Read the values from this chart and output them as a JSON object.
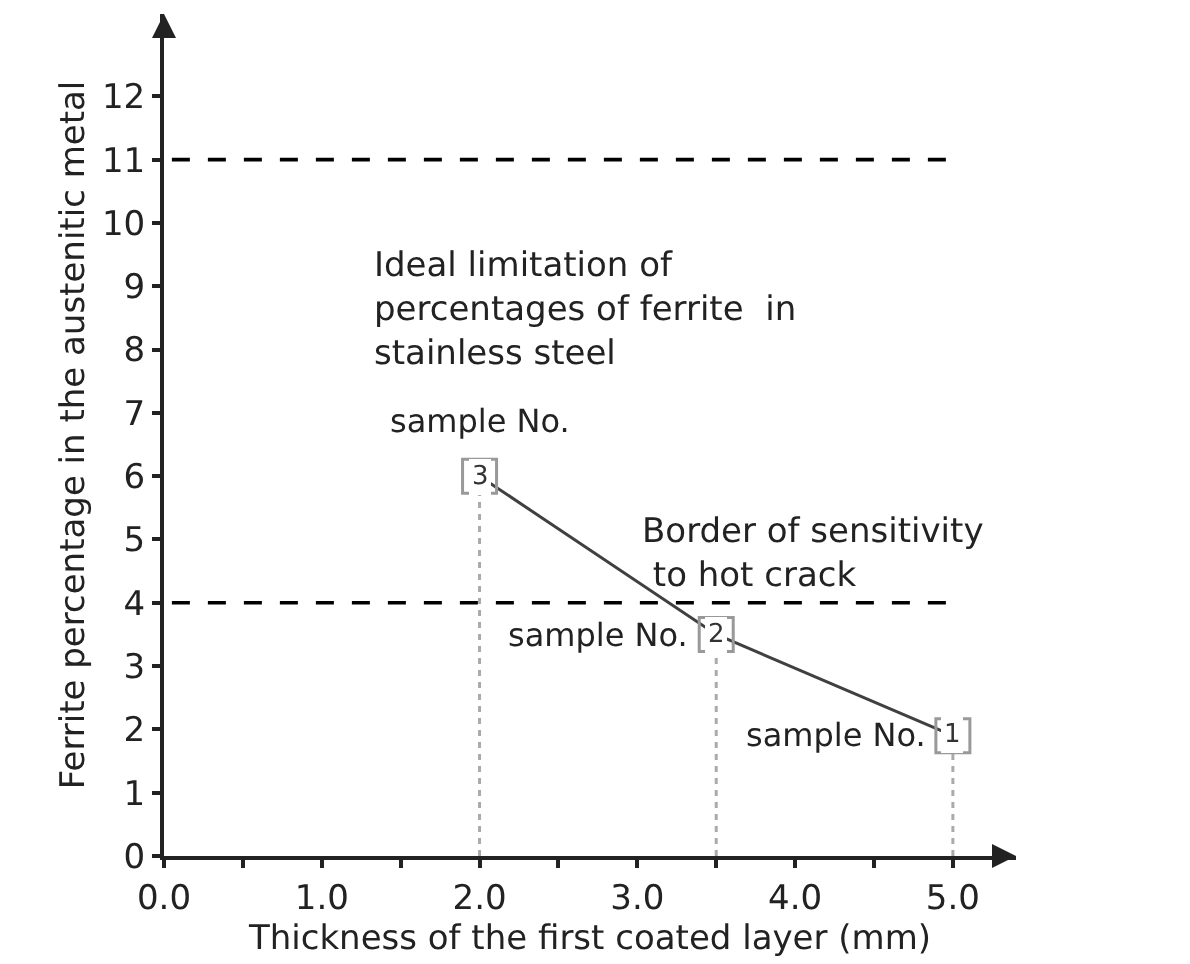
{
  "chart_data": {
    "type": "line",
    "xlabel": "Thickness of the first coated layer (mm)",
    "ylabel": "Ferrite percentage in the austenitic metal",
    "x": [
      2.0,
      3.5,
      5.0
    ],
    "series": [
      {
        "color": "#404040",
        "values": [
          6.0,
          3.5,
          1.9
        ]
      }
    ],
    "marker": "square",
    "line_style": "solid",
    "grid": false,
    "xlim": [
      0,
      5.4
    ],
    "ylim": [
      0,
      13.3
    ],
    "xticks": [
      {
        "value": 0,
        "label": "0.0"
      },
      {
        "value": 0.5,
        "label": null
      },
      {
        "value": 1,
        "label": "1.0"
      },
      {
        "value": 1.5,
        "label": null
      },
      {
        "value": 2,
        "label": "2.0"
      },
      {
        "value": 2.5,
        "label": null
      },
      {
        "value": 3,
        "label": "3.0"
      },
      {
        "value": 3.5,
        "label": null
      },
      {
        "value": 4,
        "label": "4.0"
      },
      {
        "value": 4.5,
        "label": null
      },
      {
        "value": 5,
        "label": "5.0"
      }
    ],
    "yticks": [
      0,
      1,
      2,
      3,
      4,
      5,
      6,
      7,
      8,
      9,
      10,
      11,
      12
    ],
    "ref_lines": [
      {
        "axis": "y",
        "value": 11,
        "label": "Ideal limitation of\npercentages of ferrite  in\nstainless steel",
        "color": "#000000",
        "line_style": "dashed"
      },
      {
        "axis": "y",
        "value": 4,
        "label": "Border of sensitivity\n to hot crack",
        "color": "#000000",
        "line_style": "dashed"
      },
      {
        "axis": "x",
        "value": 2.0,
        "color": "#aaaaaa",
        "line_style": "dotted"
      },
      {
        "axis": "x",
        "value": 3.5,
        "color": "#aaaaaa",
        "line_style": "dotted"
      },
      {
        "axis": "x",
        "value": 5.0,
        "color": "#aaaaaa",
        "line_style": "dotted"
      }
    ],
    "annotations": [
      {
        "text": "sample No.",
        "x": 2.0,
        "y": 6.0
      },
      {
        "text": "3",
        "x": 2.0,
        "y": 6.0
      },
      {
        "text": "sample No.",
        "x": 3.5,
        "y": 3.5
      },
      {
        "text": "2",
        "x": 3.5,
        "y": 3.5
      },
      {
        "text": "sample No.",
        "x": 5.0,
        "y": 1.9
      },
      {
        "text": "1",
        "x": 5.0,
        "y": 1.9
      }
    ]
  }
}
